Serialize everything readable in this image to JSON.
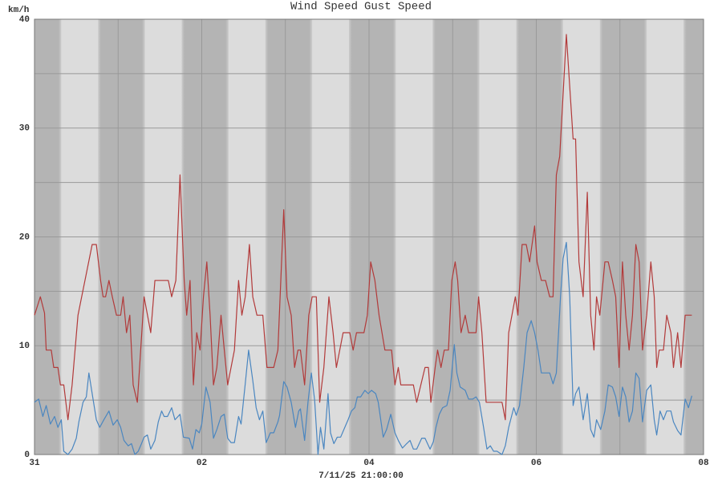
{
  "chart_data": {
    "type": "line",
    "y_label": "km/h",
    "x_label": "7/11/25 21:00:00",
    "xlim": [
      0,
      8
    ],
    "xticks": [
      {
        "value": 0,
        "label": "31"
      },
      {
        "value": 2,
        "label": "02"
      },
      {
        "value": 4,
        "label": "04"
      },
      {
        "value": 6,
        "label": "06"
      },
      {
        "value": 8,
        "label": "08"
      }
    ],
    "ylim": [
      0,
      40
    ],
    "yticks": [
      0,
      10,
      20,
      30,
      40
    ],
    "grid": true,
    "series": [
      {
        "name": "Wind Speed",
        "color": "#4a86c0",
        "x": [
          0,
          0.05,
          0.1,
          0.14,
          0.19,
          0.24,
          0.28,
          0.32,
          0.35,
          0.4,
          0.45,
          0.5,
          0.53,
          0.58,
          0.62,
          0.65,
          0.69,
          0.74,
          0.78,
          0.83,
          0.89,
          0.94,
          0.99,
          1.03,
          1.07,
          1.12,
          1.16,
          1.2,
          1.24,
          1.28,
          1.31,
          1.35,
          1.39,
          1.44,
          1.48,
          1.52,
          1.55,
          1.59,
          1.64,
          1.68,
          1.74,
          1.78,
          1.85,
          1.89,
          1.93,
          1.97,
          2.0,
          2.05,
          2.1,
          2.14,
          2.18,
          2.23,
          2.27,
          2.31,
          2.35,
          2.39,
          2.44,
          2.47,
          2.52,
          2.56,
          2.61,
          2.65,
          2.69,
          2.73,
          2.77,
          2.82,
          2.86,
          2.91,
          2.93,
          2.98,
          3.02,
          3.07,
          3.12,
          3.16,
          3.18,
          3.23,
          3.27,
          3.31,
          3.35,
          3.39,
          3.42,
          3.46,
          3.51,
          3.54,
          3.58,
          3.62,
          3.66,
          3.71,
          3.75,
          3.79,
          3.83,
          3.86,
          3.9,
          3.95,
          3.99,
          4.03,
          4.08,
          4.11,
          4.17,
          4.21,
          4.26,
          4.31,
          4.35,
          4.4,
          4.45,
          4.49,
          4.53,
          4.57,
          4.63,
          4.67,
          4.73,
          4.77,
          4.8,
          4.84,
          4.88,
          4.93,
          4.97,
          5.02,
          5.05,
          5.09,
          5.15,
          5.19,
          5.24,
          5.28,
          5.32,
          5.37,
          5.41,
          5.45,
          5.49,
          5.53,
          5.59,
          5.63,
          5.67,
          5.73,
          5.76,
          5.8,
          5.85,
          5.89,
          5.94,
          5.98,
          6.02,
          6.06,
          6.11,
          6.16,
          6.2,
          6.24,
          6.29,
          6.32,
          6.36,
          6.4,
          6.44,
          6.47,
          6.51,
          6.56,
          6.61,
          6.65,
          6.69,
          6.72,
          6.77,
          6.82,
          6.86,
          6.91,
          6.95,
          6.99,
          7.03,
          7.07,
          7.11,
          7.15,
          7.19,
          7.23,
          7.27,
          7.32,
          7.37,
          7.41,
          7.44,
          7.48,
          7.52,
          7.56,
          7.61,
          7.64,
          7.69,
          7.73,
          7.78,
          7.82,
          7.86
        ],
        "values": [
          4.8,
          5.1,
          3.5,
          4.5,
          2.8,
          3.5,
          2.5,
          3.2,
          0.3,
          0,
          0.5,
          1.5,
          3,
          4.8,
          5.3,
          7.5,
          5.6,
          3.2,
          2.5,
          3.2,
          4,
          2.7,
          3.2,
          2.5,
          1.3,
          0.8,
          1,
          0,
          0.3,
          1,
          1.6,
          1.8,
          0.5,
          1.3,
          3,
          4,
          3.5,
          3.5,
          4.3,
          3.2,
          3.7,
          1.6,
          1.5,
          0.5,
          2.3,
          2,
          2.8,
          6.2,
          4.8,
          1.5,
          2.3,
          3.5,
          3.7,
          1.5,
          1.1,
          1.1,
          3.5,
          2.8,
          6.5,
          9.6,
          6.8,
          4.3,
          3.2,
          4,
          1.1,
          2,
          2,
          3,
          3.6,
          6.7,
          6.2,
          4.8,
          2.5,
          4,
          4.2,
          1.3,
          4.8,
          7.5,
          5,
          0,
          2.5,
          0.5,
          5.6,
          2,
          1,
          1.6,
          1.6,
          2.5,
          3.2,
          4,
          4.3,
          5.3,
          5.3,
          5.9,
          5.6,
          5.9,
          5.6,
          4.8,
          1.6,
          2.3,
          3.7,
          2,
          1.3,
          0.6,
          1,
          1.3,
          0.5,
          0.5,
          1.5,
          1.5,
          0.5,
          1.2,
          2.5,
          3.7,
          4.3,
          4.5,
          5.9,
          10.1,
          7.5,
          6.2,
          5.9,
          5.1,
          5.1,
          5.3,
          4.8,
          2.5,
          0.5,
          0.8,
          0.3,
          0.3,
          0,
          0.8,
          2.5,
          4.3,
          3.6,
          4.5,
          8,
          11.2,
          12.3,
          11.2,
          9.6,
          7.5,
          7.5,
          7.5,
          6.5,
          7.5,
          14.5,
          18,
          19.5,
          14.5,
          4.5,
          5.6,
          6.2,
          3.2,
          5.6,
          2.3,
          1.6,
          3.2,
          2.3,
          4,
          6.4,
          6.2,
          5.3,
          3.5,
          6.2,
          5.3,
          3,
          4,
          7.5,
          7,
          3,
          5.9,
          6.4,
          3.2,
          1.8,
          4,
          3.2,
          4,
          4,
          3,
          2.2,
          1.8,
          5.1,
          4.3,
          5.4
        ]
      },
      {
        "name": "Gust Speed",
        "color": "#b23a3a",
        "x": [
          0,
          0.07,
          0.12,
          0.14,
          0.2,
          0.23,
          0.28,
          0.31,
          0.35,
          0.4,
          0.45,
          0.52,
          0.69,
          0.74,
          0.79,
          0.82,
          0.85,
          0.89,
          0.93,
          0.98,
          1.03,
          1.06,
          1.1,
          1.14,
          1.18,
          1.23,
          1.31,
          1.39,
          1.44,
          1.6,
          1.64,
          1.69,
          1.74,
          1.79,
          1.82,
          1.86,
          1.9,
          1.94,
          1.98,
          2.02,
          2.06,
          2.1,
          2.14,
          2.18,
          2.23,
          2.27,
          2.31,
          2.39,
          2.44,
          2.48,
          2.52,
          2.57,
          2.61,
          2.66,
          2.73,
          2.78,
          2.86,
          2.91,
          2.98,
          3.02,
          3.07,
          3.11,
          3.15,
          3.18,
          3.23,
          3.28,
          3.32,
          3.37,
          3.41,
          3.46,
          3.52,
          3.57,
          3.61,
          3.65,
          3.69,
          3.77,
          3.81,
          3.85,
          3.94,
          3.98,
          4.02,
          4.07,
          4.12,
          4.19,
          4.27,
          4.31,
          4.35,
          4.38,
          4.53,
          4.57,
          4.67,
          4.71,
          4.74,
          4.79,
          4.82,
          4.86,
          4.9,
          4.95,
          4.99,
          5.03,
          5.06,
          5.1,
          5.15,
          5.19,
          5.28,
          5.31,
          5.35,
          5.4,
          5.55,
          5.59,
          5.63,
          5.67,
          5.75,
          5.78,
          5.83,
          5.88,
          5.92,
          5.98,
          6.01,
          6.06,
          6.11,
          6.16,
          6.2,
          6.24,
          6.28,
          6.36,
          6.44,
          6.47,
          6.51,
          6.56,
          6.61,
          6.65,
          6.69,
          6.72,
          6.76,
          6.82,
          6.86,
          6.91,
          6.95,
          6.99,
          7.03,
          7.07,
          7.11,
          7.15,
          7.19,
          7.23,
          7.27,
          7.32,
          7.37,
          7.41,
          7.44,
          7.47,
          7.52,
          7.56,
          7.61,
          7.64,
          7.69,
          7.73,
          7.78,
          7.86
        ],
        "values": [
          12.8,
          14.5,
          13,
          9.6,
          9.6,
          8,
          8,
          6.4,
          6.4,
          3.2,
          6.4,
          12.8,
          19.3,
          19.3,
          16,
          14.5,
          14.5,
          16,
          14.5,
          12.8,
          12.8,
          14.5,
          11.2,
          12.8,
          6.4,
          4.8,
          14.5,
          11.2,
          16,
          16,
          14.5,
          16,
          25.7,
          16,
          12.8,
          16,
          6.4,
          11.2,
          9.6,
          14.5,
          17.7,
          12.8,
          6.4,
          8,
          12.8,
          9.6,
          6.4,
          9.6,
          16,
          12.8,
          14.5,
          19.3,
          14.5,
          12.8,
          12.8,
          8,
          8,
          9.6,
          22.5,
          14.5,
          12.8,
          8,
          9.6,
          9.6,
          6.4,
          12.8,
          14.5,
          14.5,
          4.8,
          8,
          14.5,
          11.2,
          8,
          9.6,
          11.2,
          11.2,
          9.6,
          11.2,
          11.2,
          12.8,
          17.7,
          16,
          12.8,
          9.6,
          9.6,
          6.4,
          8,
          6.4,
          6.4,
          4.8,
          8,
          8,
          4.8,
          8,
          9.6,
          8,
          9.6,
          9.6,
          16,
          17.7,
          16,
          11.2,
          12.8,
          11.2,
          11.2,
          14.5,
          11.2,
          4.8,
          4.8,
          4.8,
          3.2,
          11.2,
          14.5,
          12.8,
          19.3,
          19.3,
          17.7,
          21,
          17.7,
          16,
          16,
          14.5,
          14.5,
          25.7,
          27.4,
          38.6,
          29,
          29,
          17.7,
          14.5,
          24.1,
          12.8,
          9.6,
          14.5,
          12.8,
          17.7,
          17.7,
          16,
          14.5,
          8,
          17.7,
          12.8,
          9.6,
          12.8,
          19.3,
          17.7,
          9.6,
          12.8,
          17.7,
          14.5,
          8,
          9.6,
          9.6,
          12.8,
          11.2,
          8,
          11.2,
          8,
          12.8,
          12.8
        ]
      }
    ]
  }
}
